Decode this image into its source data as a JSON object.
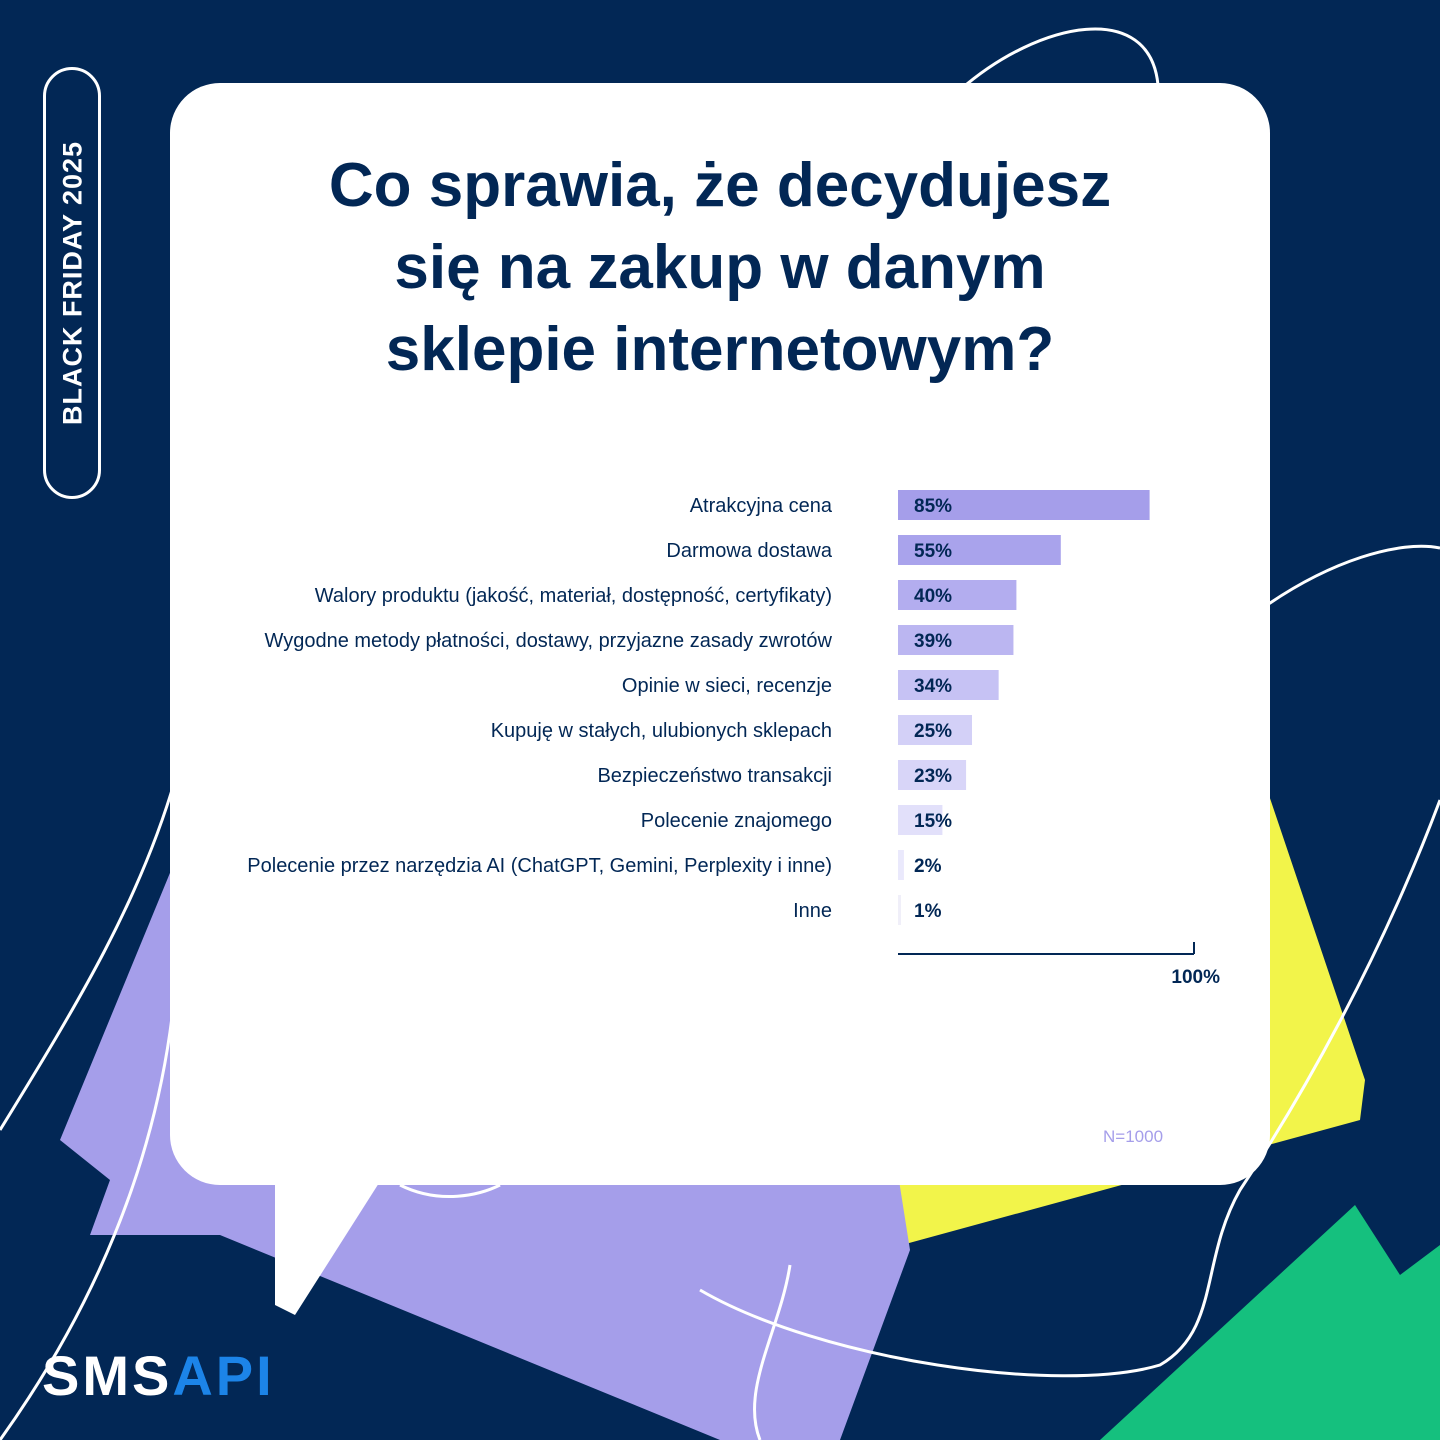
{
  "brand": {
    "side_label": "BLACK FRIDAY  2025",
    "logo_part1": "SMS",
    "logo_part2": "API"
  },
  "colors": {
    "background": "#022755",
    "card": "#ffffff",
    "text": "#022755",
    "lavender": "#a59eea",
    "yellow": "#f2f44a",
    "green": "#15c07e",
    "logo_accent": "#1c84e8"
  },
  "title_lines": [
    "Co sprawia, że decydujesz",
    "się na zakup w danym",
    "sklepie internetowym?"
  ],
  "chart_data": {
    "type": "bar",
    "orientation": "horizontal",
    "title": "Co sprawia, że decydujesz się na zakup w danym sklepie internetowym?",
    "categories": [
      "Atrakcyjna cena",
      "Darmowa dostawa",
      "Walory produktu (jakość, materiał, dostępność, certyfikaty)",
      "Wygodne metody płatności, dostawy, przyjazne zasady zwrotów",
      "Opinie w sieci, recenzje",
      "Kupuję w stałych, ulubionych sklepach",
      "Bezpieczeństwo transakcji",
      "Polecenie znajomego",
      "Polecenie przez narzędzia AI (ChatGPT, Gemini, Perplexity i inne)",
      "Inne"
    ],
    "values": [
      85,
      55,
      40,
      39,
      34,
      25,
      23,
      15,
      2,
      1
    ],
    "value_labels": [
      "85%",
      "55%",
      "40%",
      "39%",
      "34%",
      "25%",
      "23%",
      "15%",
      "2%",
      "1%"
    ],
    "bar_colors": [
      "#a59eea",
      "#a9a3ec",
      "#b3adef",
      "#bbb6f1",
      "#c6c2f4",
      "#d3d0f7",
      "#d8d5f8",
      "#e2e0fa",
      "#eae9fc",
      "#f0eff9"
    ],
    "xlim": [
      0,
      100
    ],
    "axis_end_label": "100%",
    "note": "N=1000",
    "grid": false,
    "legend": "none"
  }
}
